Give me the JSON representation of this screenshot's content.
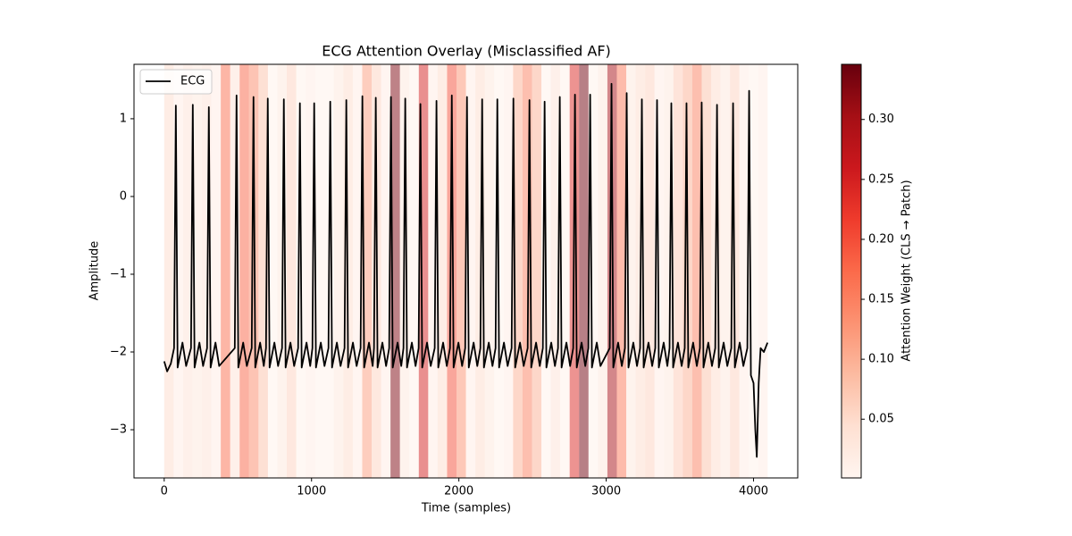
{
  "chart_data": {
    "type": "line",
    "title": "ECG Attention Overlay (Misclassified AF)",
    "x_label": "Time (samples)",
    "y_label": "Amplitude",
    "xlim": [
      -205,
      4300
    ],
    "ylim": [
      -3.62,
      1.7
    ],
    "xticks": [
      0,
      1000,
      2000,
      3000,
      4000
    ],
    "yticks": [
      {
        "value": -3,
        "label": "−3"
      },
      {
        "value": -2,
        "label": "−2"
      },
      {
        "value": -1,
        "label": "−1"
      },
      0,
      1
    ],
    "legend": "upper left",
    "series": [
      {
        "name": "ECG",
        "color": "#000000",
        "x": [
          0,
          20,
          45,
          67,
          79,
          91,
          124,
          149,
          182,
          194,
          206,
          239,
          264,
          291,
          303,
          315,
          348,
          373,
          479,
          491,
          503,
          536,
          561,
          594,
          606,
          618,
          651,
          676,
          691,
          703,
          715,
          748,
          773,
          800,
          812,
          824,
          857,
          882,
          909,
          921,
          933,
          966,
          991,
          1006,
          1018,
          1030,
          1063,
          1088,
          1115,
          1127,
          1139,
          1172,
          1197,
          1224,
          1236,
          1248,
          1281,
          1306,
          1333,
          1345,
          1357,
          1390,
          1415,
          1424,
          1436,
          1448,
          1481,
          1506,
          1527,
          1539,
          1551,
          1584,
          1609,
          1624,
          1636,
          1648,
          1681,
          1706,
          1727,
          1739,
          1751,
          1784,
          1809,
          1836,
          1848,
          1860,
          1893,
          1918,
          1940,
          1952,
          1964,
          1997,
          2022,
          2043,
          2055,
          2067,
          2100,
          2125,
          2146,
          2158,
          2170,
          2203,
          2228,
          2249,
          2261,
          2273,
          2306,
          2331,
          2358,
          2370,
          2382,
          2415,
          2440,
          2467,
          2479,
          2491,
          2524,
          2549,
          2570,
          2582,
          2594,
          2627,
          2652,
          2673,
          2685,
          2697,
          2730,
          2755,
          2776,
          2788,
          2800,
          2833,
          2858,
          2879,
          2891,
          2903,
          2936,
          2961,
          3024,
          3036,
          3048,
          3081,
          3106,
          3127,
          3139,
          3151,
          3184,
          3209,
          3230,
          3242,
          3254,
          3287,
          3312,
          3333,
          3345,
          3357,
          3390,
          3415,
          3430,
          3442,
          3454,
          3487,
          3512,
          3533,
          3545,
          3557,
          3590,
          3615,
          3636,
          3648,
          3660,
          3693,
          3718,
          3740,
          3752,
          3764,
          3797,
          3822,
          3849,
          3861,
          3873,
          3906,
          3931,
          3958,
          3970,
          3982,
          4000,
          4012,
          4022,
          4035,
          4048,
          4070,
          4095
        ],
        "values": [
          -2.12,
          -2.25,
          -2.15,
          -1.95,
          1.17,
          -2.2,
          -1.88,
          -2.18,
          -1.95,
          1.18,
          -2.2,
          -1.88,
          -2.18,
          -1.95,
          1.15,
          -2.2,
          -1.88,
          -2.18,
          -1.95,
          1.3,
          -2.2,
          -1.88,
          -2.18,
          -1.95,
          1.28,
          -2.2,
          -1.88,
          -2.18,
          -1.95,
          1.26,
          -2.2,
          -1.88,
          -2.18,
          -1.95,
          1.25,
          -2.2,
          -1.88,
          -2.18,
          -1.95,
          1.2,
          -2.2,
          -1.88,
          -2.18,
          -1.95,
          1.2,
          -2.2,
          -1.88,
          -2.18,
          -1.95,
          1.22,
          -2.2,
          -1.88,
          -2.18,
          -1.95,
          1.24,
          -2.2,
          -1.88,
          -2.18,
          -1.95,
          1.29,
          -2.2,
          -1.88,
          -2.18,
          -1.95,
          1.27,
          -2.2,
          -1.88,
          -2.18,
          -1.95,
          1.28,
          -2.2,
          -1.88,
          -2.18,
          -1.95,
          1.26,
          -2.2,
          -1.88,
          -2.18,
          -1.95,
          1.19,
          -2.2,
          -1.88,
          -2.18,
          -1.95,
          1.23,
          -2.2,
          -1.88,
          -2.18,
          -1.95,
          1.3,
          -2.2,
          -1.88,
          -2.18,
          -1.95,
          1.28,
          -2.2,
          -1.88,
          -2.18,
          -1.95,
          1.25,
          -2.2,
          -1.88,
          -2.18,
          -1.95,
          1.25,
          -2.2,
          -1.88,
          -2.18,
          -1.95,
          1.26,
          -2.2,
          -1.88,
          -2.18,
          -1.95,
          1.24,
          -2.2,
          -1.88,
          -2.18,
          -1.95,
          1.22,
          -2.2,
          -1.88,
          -2.18,
          -1.95,
          1.28,
          -2.2,
          -1.88,
          -2.18,
          -1.95,
          1.31,
          -2.2,
          -1.88,
          -2.18,
          -1.95,
          1.31,
          -2.2,
          -1.88,
          -2.18,
          -1.95,
          1.45,
          -2.2,
          -1.88,
          -2.18,
          -1.95,
          1.33,
          -2.2,
          -1.88,
          -2.18,
          -1.95,
          1.25,
          -2.2,
          -1.88,
          -2.18,
          -1.95,
          1.24,
          -2.2,
          -1.88,
          -2.18,
          -1.95,
          1.2,
          -2.2,
          -1.88,
          -2.18,
          -1.95,
          1.2,
          -2.2,
          -1.88,
          -2.18,
          -1.95,
          1.21,
          -2.2,
          -1.88,
          -2.18,
          -1.95,
          1.18,
          -2.2,
          -1.88,
          -2.18,
          -1.95,
          1.2,
          -2.2,
          -1.88,
          -2.18,
          -1.95,
          1.36,
          -2.3,
          -2.4,
          -3.0,
          -3.35,
          -2.4,
          -1.95,
          -2.0,
          -1.88
        ]
      }
    ],
    "attention": {
      "bins": [
        0,
        64,
        128,
        192,
        256,
        320,
        384,
        448,
        512,
        576,
        640,
        704,
        768,
        832,
        896,
        960,
        1024,
        1088,
        1152,
        1216,
        1280,
        1344,
        1408,
        1472,
        1536,
        1600,
        1664,
        1728,
        1792,
        1856,
        1920,
        1984,
        2048,
        2112,
        2176,
        2240,
        2304,
        2368,
        2432,
        2496,
        2560,
        2624,
        2688,
        2752,
        2816,
        2880,
        2944,
        3008,
        3072,
        3136,
        3200,
        3264,
        3328,
        3392,
        3456,
        3520,
        3584,
        3648,
        3712,
        3776,
        3840,
        3904,
        3968,
        4032,
        4096
      ],
      "values": [
        0.05,
        0.02,
        0.04,
        0.03,
        0.04,
        0.02,
        0.17,
        0.04,
        0.18,
        0.14,
        0.08,
        0.01,
        0.03,
        0.06,
        0.01,
        0.02,
        0.01,
        0.01,
        0.03,
        0.05,
        0.02,
        0.12,
        0.06,
        0.02,
        0.33,
        0.03,
        0.01,
        0.25,
        0.02,
        0.05,
        0.2,
        0.13,
        0.02,
        0.05,
        0.03,
        0.01,
        0.02,
        0.1,
        0.15,
        0.1,
        0.01,
        0.04,
        0.01,
        0.24,
        0.34,
        0.01,
        0.03,
        0.3,
        0.16,
        0.03,
        0.05,
        0.06,
        0.02,
        0.03,
        0.07,
        0.1,
        0.15,
        0.08,
        0.05,
        0.03,
        0.06,
        0.02,
        0.01,
        0.02
      ]
    },
    "colorbar": {
      "label": "Attention Weight (CLS → Patch)",
      "lim": [
        0.001,
        0.346
      ],
      "ticks": [
        0.05,
        {
          "value": 0.1,
          "label": "0.10"
        },
        0.15,
        {
          "value": 0.2,
          "label": "0.20"
        },
        0.25,
        {
          "value": 0.3,
          "label": "0.30"
        }
      ],
      "cmap": [
        "#fff5f0",
        "#fee0d2",
        "#fcbba1",
        "#fc9272",
        "#fb6a4a",
        "#ef3b2c",
        "#cb181d",
        "#a50f15",
        "#67000d"
      ]
    }
  }
}
